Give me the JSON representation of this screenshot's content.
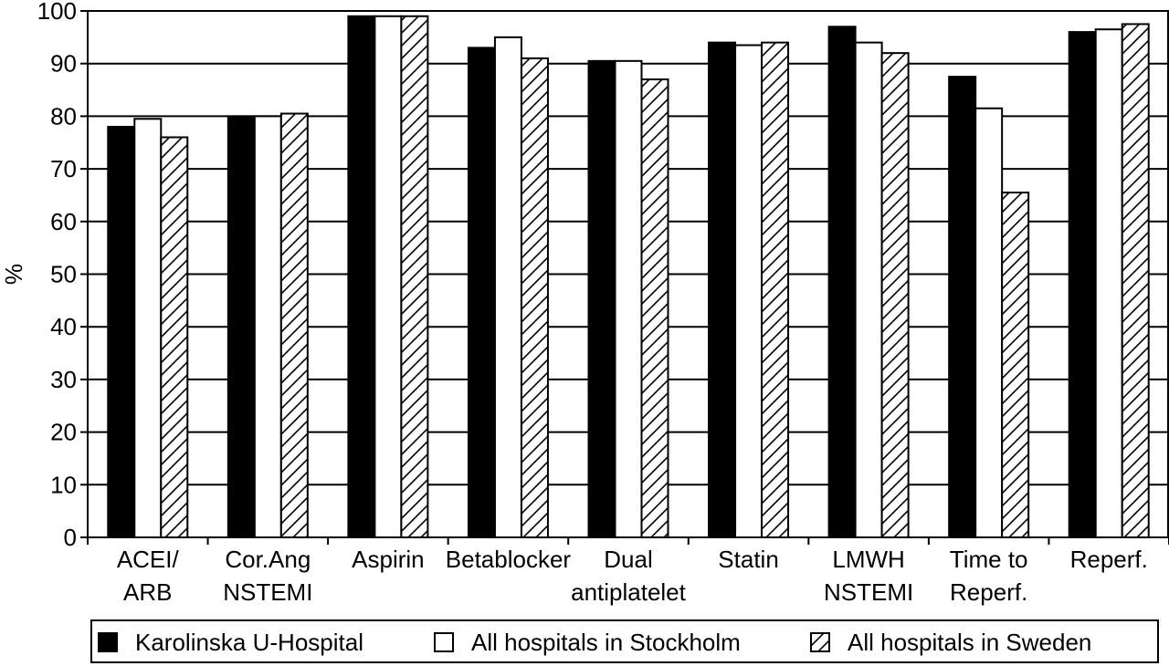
{
  "chart_data": {
    "type": "bar",
    "title": "",
    "xlabel": "",
    "ylabel": "%",
    "ylim": [
      0,
      100
    ],
    "yticks": [
      0,
      10,
      20,
      30,
      40,
      50,
      60,
      70,
      80,
      90,
      100
    ],
    "grid": "horizontal",
    "legend_position": "bottom",
    "categories": [
      [
        "ACEI/",
        "ARB"
      ],
      [
        "Cor.Ang",
        "NSTEMI"
      ],
      [
        "Aspirin"
      ],
      [
        "Betablocker"
      ],
      [
        "Dual",
        "antiplatelet"
      ],
      [
        "Statin"
      ],
      [
        "LMWH",
        "NSTEMI"
      ],
      [
        "Time to",
        "Reperf."
      ],
      [
        "Reperf."
      ]
    ],
    "series": [
      {
        "name": "Karolinska U-Hospital",
        "fill": "solid",
        "color": "#000000",
        "values": [
          78,
          80,
          99,
          93,
          90.5,
          94,
          97,
          87.5,
          96
        ]
      },
      {
        "name": "All hospitals in Stockholm",
        "fill": "hollow",
        "color": "#ffffff",
        "values": [
          79.5,
          80,
          99,
          95,
          90.5,
          93.5,
          94,
          81.5,
          96.5
        ]
      },
      {
        "name": "All hospitals in Sweden",
        "fill": "hatched",
        "color": "#ffffff",
        "values": [
          76,
          80.5,
          99,
          91,
          87,
          94,
          92,
          65.5,
          97.5
        ]
      }
    ]
  }
}
